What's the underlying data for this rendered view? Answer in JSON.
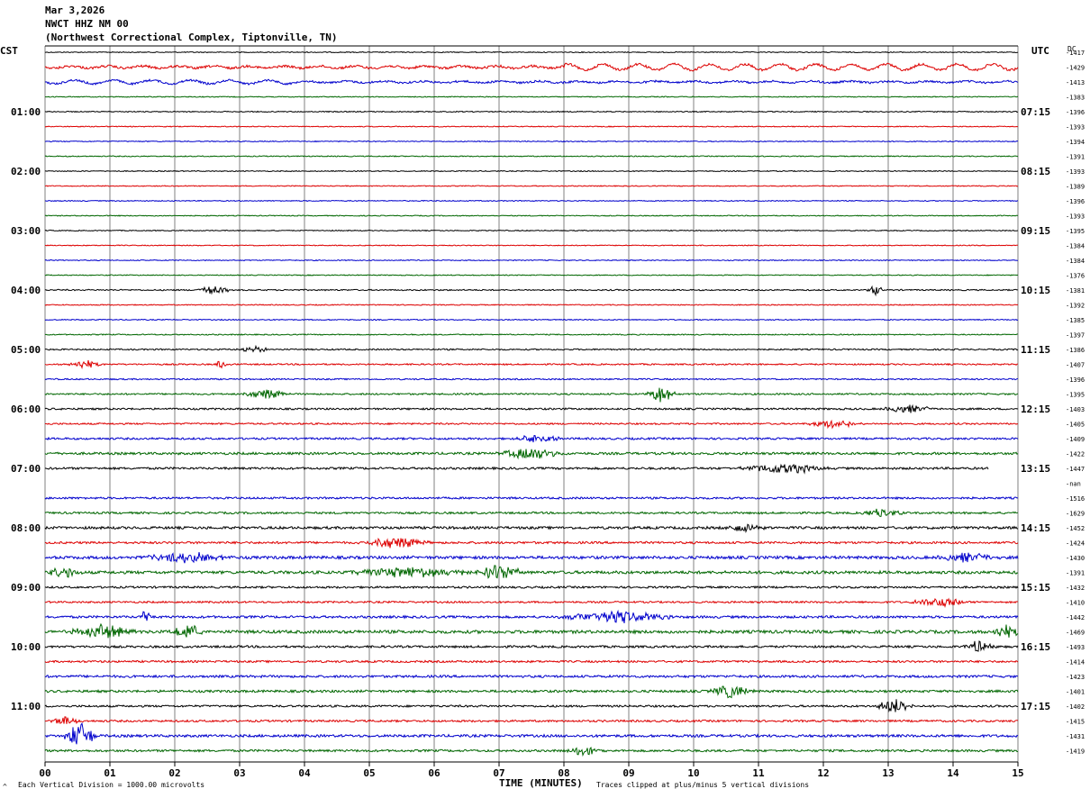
{
  "header": {
    "date": "Mar 3,2026",
    "station": "NWCT HHZ NM 00",
    "location": "(Northwest Correctional Complex, Tiptonville, TN)"
  },
  "left_tz": "CST",
  "right_tz": "UTC",
  "dc_label": "DC",
  "footer": {
    "left": "Each Vertical Division = 1000.00 microvolts",
    "corner_mark": "^",
    "center": "TIME (MINUTES)",
    "right": "Traces clipped at plus/minus 5 vertical divisions"
  },
  "colors": {
    "black": "#000000",
    "red": "#dd0000",
    "blue": "#0000cc",
    "green": "#006600",
    "grid": "#808080"
  },
  "chart_data": {
    "type": "line",
    "title": "NWCT HHZ NM 00",
    "xlabel": "TIME (MINUTES)",
    "x_ticks": [
      "00",
      "01",
      "02",
      "03",
      "04",
      "05",
      "06",
      "07",
      "08",
      "09",
      "10",
      "11",
      "12",
      "13",
      "14",
      "15"
    ],
    "xlim": [
      0,
      15
    ],
    "left_time_labels": [
      "01:00",
      "02:00",
      "03:00",
      "04:00",
      "05:00",
      "06:00",
      "07:00",
      "08:00",
      "09:00",
      "10:00",
      "11:00"
    ],
    "right_time_labels": [
      "07:15",
      "08:15",
      "09:15",
      "10:15",
      "11:15",
      "12:15",
      "13:15",
      "14:15",
      "15:15",
      "16:15",
      "17:15"
    ],
    "trace_color_cycle": [
      "black",
      "red",
      "blue",
      "green"
    ],
    "dc_offsets": [
      "-1417",
      "-1429",
      "-1413",
      "-1383",
      "-1396",
      "-1393",
      "-1394",
      "-1391",
      "-1393",
      "-1389",
      "-1396",
      "-1393",
      "-1395",
      "-1384",
      "-1384",
      "-1376",
      "-1381",
      "-1392",
      "-1385",
      "-1397",
      "-1386",
      "-1407",
      "-1396",
      "-1395",
      "-1403",
      "-1405",
      "-1409",
      "-1422",
      "-1447",
      "-nan",
      "-1516",
      "-1629",
      "-1452",
      "-1424",
      "-1430",
      "-1391",
      "-1432",
      "-1410",
      "-1442",
      "-1469",
      "-1493",
      "-1414",
      "-1423",
      "-1401",
      "-1402",
      "-1415",
      "-1431",
      "-1419"
    ],
    "trace_amplitude": [
      1.0,
      2.6,
      2.2,
      1.0,
      1.1,
      1.0,
      1.0,
      1.1,
      1.0,
      1.0,
      1.0,
      1.0,
      1.0,
      1.0,
      1.0,
      1.0,
      1.4,
      1.1,
      1.1,
      1.2,
      1.5,
      1.6,
      1.5,
      1.8,
      2.0,
      1.8,
      2.2,
      2.6,
      2.4,
      0,
      2.2,
      2.2,
      2.8,
      2.4,
      3.2,
      3.2,
      2.2,
      2.0,
      2.6,
      3.4,
      2.4,
      2.2,
      2.6,
      2.6,
      2.2,
      2.2,
      2.8,
      2.4
    ],
    "events": [
      {
        "trace": 16,
        "minute": 2.6,
        "amp": 5,
        "width": 0.3
      },
      {
        "trace": 16,
        "minute": 12.8,
        "amp": 6,
        "width": 0.15
      },
      {
        "trace": 20,
        "minute": 3.2,
        "amp": 4,
        "width": 0.3
      },
      {
        "trace": 21,
        "minute": 0.6,
        "amp": 5,
        "width": 0.3
      },
      {
        "trace": 21,
        "minute": 2.7,
        "amp": 6,
        "width": 0.1
      },
      {
        "trace": 23,
        "minute": 3.4,
        "amp": 6,
        "width": 0.4
      },
      {
        "trace": 23,
        "minute": 9.5,
        "amp": 10,
        "width": 0.25
      },
      {
        "trace": 24,
        "minute": 13.3,
        "amp": 5,
        "width": 0.5
      },
      {
        "trace": 25,
        "minute": 12.2,
        "amp": 5,
        "width": 0.5
      },
      {
        "trace": 26,
        "minute": 7.6,
        "amp": 6,
        "width": 0.4
      },
      {
        "trace": 27,
        "minute": 7.5,
        "amp": 7,
        "width": 0.6
      },
      {
        "trace": 28,
        "minute": 11.4,
        "amp": 6,
        "width": 0.8
      },
      {
        "trace": 31,
        "minute": 12.9,
        "amp": 5,
        "width": 0.4
      },
      {
        "trace": 32,
        "minute": 10.8,
        "amp": 5,
        "width": 0.4
      },
      {
        "trace": 33,
        "minute": 5.4,
        "amp": 7,
        "width": 0.6
      },
      {
        "trace": 34,
        "minute": 2.2,
        "amp": 6,
        "width": 0.8
      },
      {
        "trace": 34,
        "minute": 14.2,
        "amp": 6,
        "width": 0.6
      },
      {
        "trace": 35,
        "minute": 0.3,
        "amp": 7,
        "width": 0.3
      },
      {
        "trace": 35,
        "minute": 5.6,
        "amp": 6,
        "width": 1.2
      },
      {
        "trace": 35,
        "minute": 7.0,
        "amp": 10,
        "width": 0.4
      },
      {
        "trace": 37,
        "minute": 13.8,
        "amp": 6,
        "width": 0.5
      },
      {
        "trace": 38,
        "minute": 1.55,
        "amp": 9,
        "width": 0.1
      },
      {
        "trace": 38,
        "minute": 8.8,
        "amp": 7,
        "width": 1.0
      },
      {
        "trace": 39,
        "minute": 0.9,
        "amp": 8,
        "width": 0.6
      },
      {
        "trace": 39,
        "minute": 2.2,
        "amp": 9,
        "width": 0.3
      },
      {
        "trace": 39,
        "minute": 14.8,
        "amp": 7,
        "width": 0.3
      },
      {
        "trace": 40,
        "minute": 14.4,
        "amp": 7,
        "width": 0.3
      },
      {
        "trace": 43,
        "minute": 10.6,
        "amp": 8,
        "width": 0.4
      },
      {
        "trace": 44,
        "minute": 13.1,
        "amp": 8,
        "width": 0.4
      },
      {
        "trace": 45,
        "minute": 0.3,
        "amp": 5,
        "width": 0.3
      },
      {
        "trace": 46,
        "minute": 0.55,
        "amp": 15,
        "width": 0.3
      },
      {
        "trace": 47,
        "minute": 8.3,
        "amp": 6,
        "width": 0.3
      }
    ]
  }
}
